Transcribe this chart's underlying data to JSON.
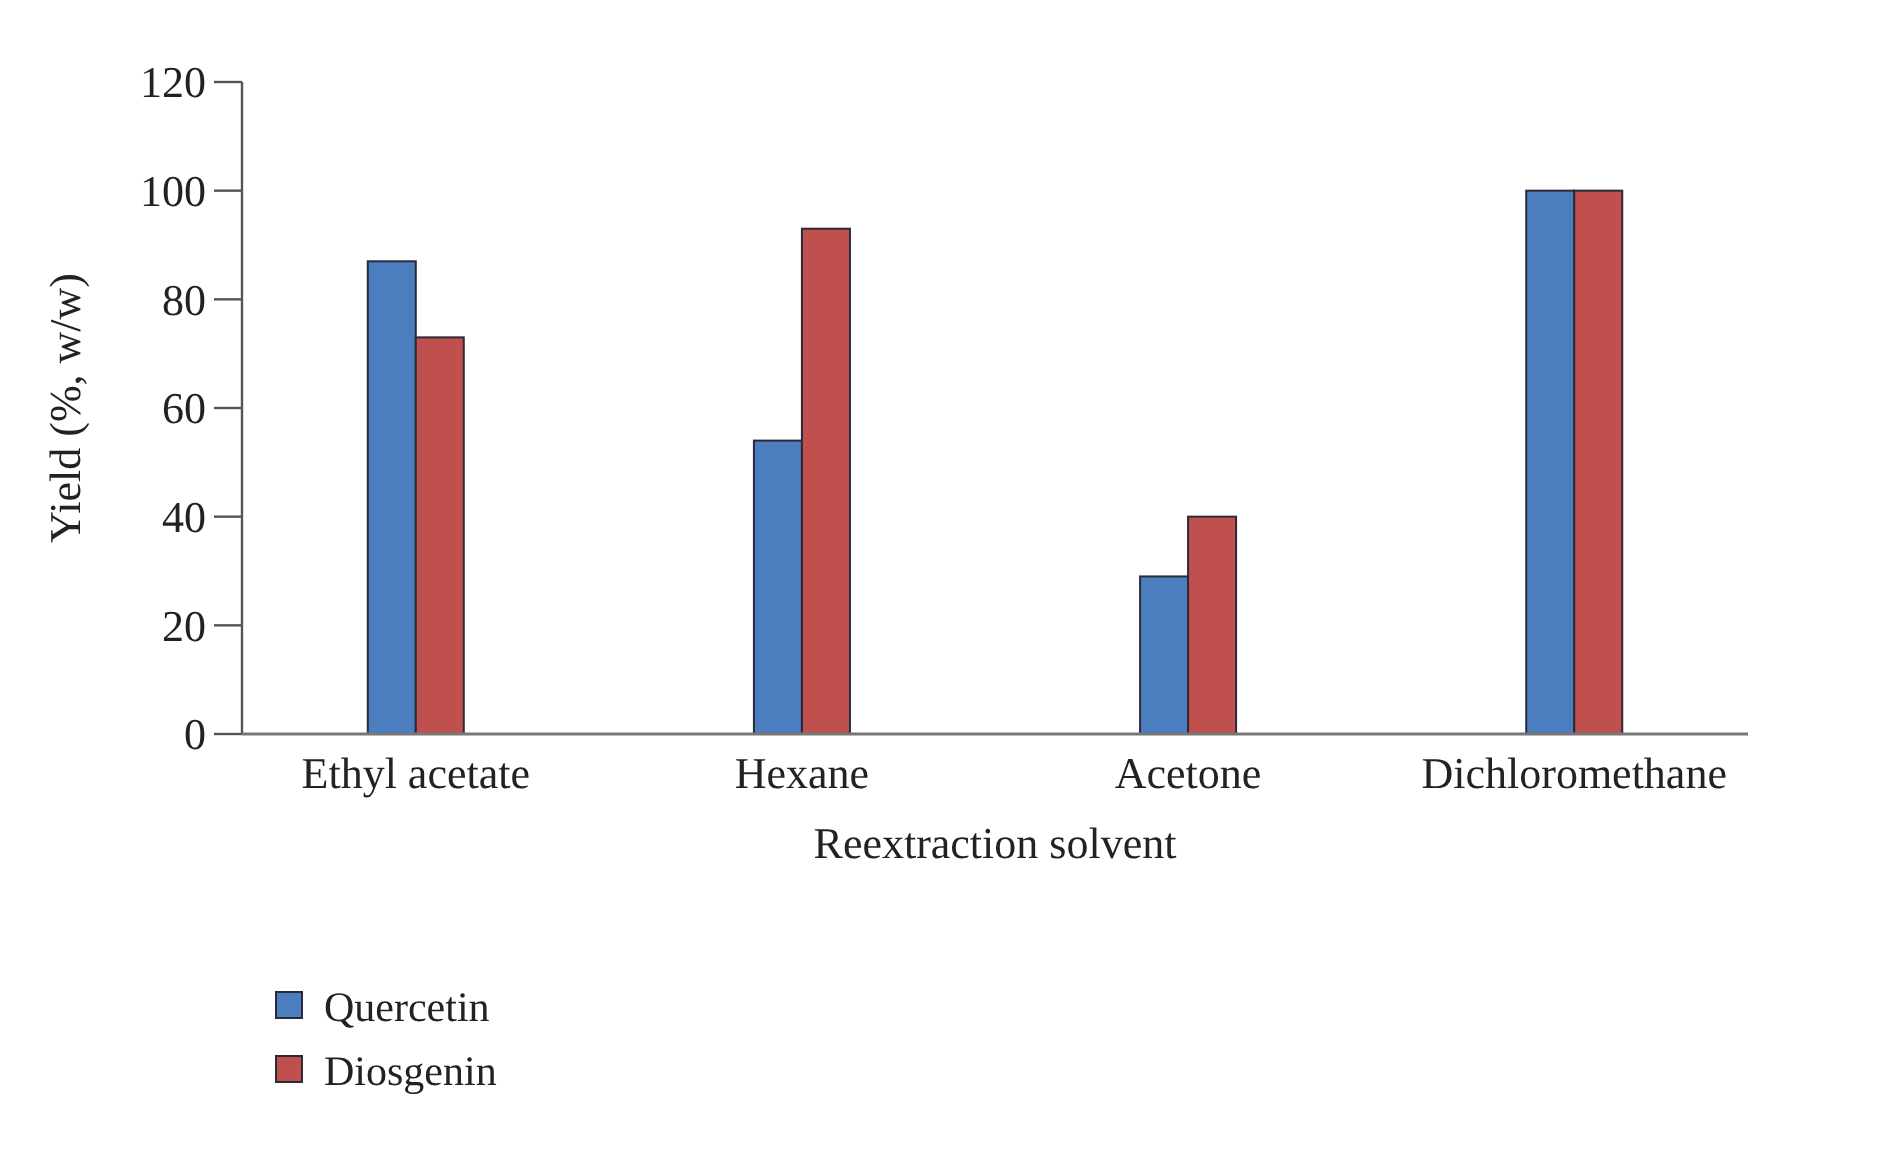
{
  "chart_data": {
    "type": "bar",
    "xlabel": "Reextraction solvent",
    "ylabel": "Yield (%, w/w)",
    "categories": [
      "Ethyl acetate",
      "Hexane",
      "Acetone",
      "Dichloromethane"
    ],
    "series": [
      {
        "name": "Quercetin",
        "color": "#4a7ebf",
        "values": [
          87,
          54,
          29,
          100
        ]
      },
      {
        "name": "Diosgenin",
        "color": "#c0504d",
        "values": [
          73,
          93,
          40,
          100
        ]
      }
    ],
    "ylim": [
      0,
      120
    ],
    "yticks": [
      0,
      20,
      40,
      60,
      80,
      100,
      120
    ],
    "grid": false,
    "legend": "bottom left"
  }
}
